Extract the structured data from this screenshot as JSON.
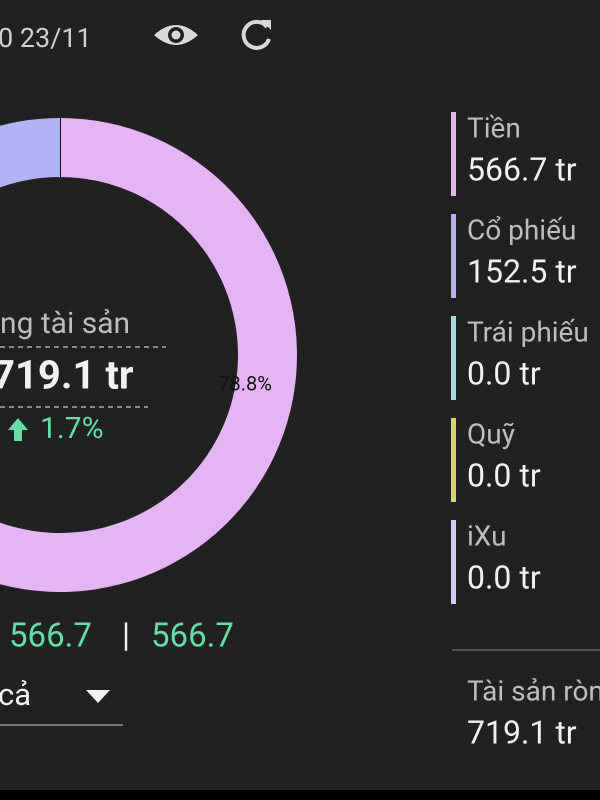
{
  "header": {
    "date": "0 23/11"
  },
  "chart_data": {
    "type": "pie",
    "categories": [
      "Tiền",
      "Cổ phiếu"
    ],
    "values": [
      78.8,
      21.2
    ],
    "value_labels": [
      "78.8%",
      null
    ],
    "colors": [
      "#e6b4f6",
      "#b1b2f7"
    ]
  },
  "center": {
    "title": "ng tài sản",
    "total": "719.1 tr",
    "change": "1.7%"
  },
  "summary": {
    "left": "566.7",
    "separator": "|",
    "right": "566.7",
    "filter": "cả"
  },
  "legend": [
    {
      "label": "Tiền",
      "value": "566.7 tr",
      "color": "#e6b4f6"
    },
    {
      "label": "Cổ phiếu",
      "value": "152.5 tr",
      "color": "#b1b2f7"
    },
    {
      "label": "Trái phiếu",
      "value": "0.0 tr",
      "color": "#9fdede"
    },
    {
      "label": "Quỹ",
      "value": "0.0 tr",
      "color": "#d9d36c"
    },
    {
      "label": "iXu",
      "value": "0.0 tr",
      "color": "#d4ccf6"
    }
  ],
  "footer": {
    "label": "Tài sản ròng",
    "value": "719.1 tr"
  }
}
